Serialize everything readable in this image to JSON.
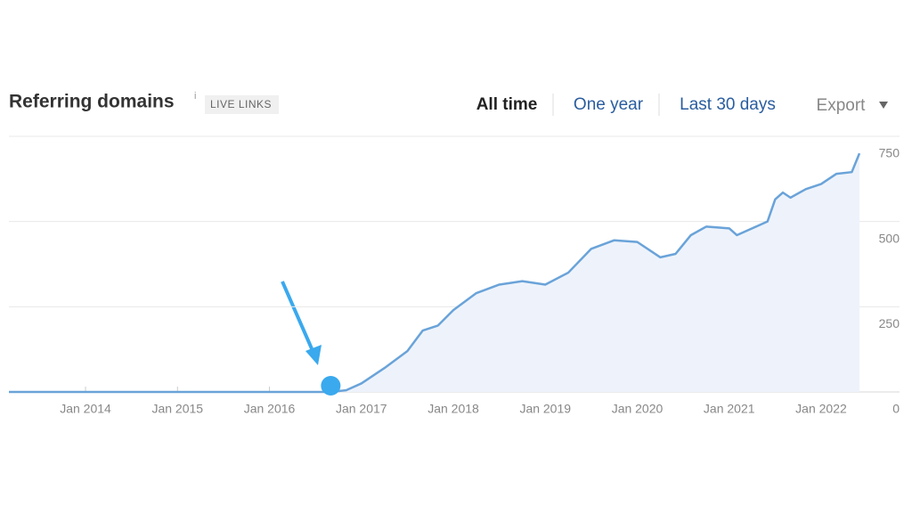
{
  "chart_data": {
    "type": "area",
    "title": "Referring domains",
    "info": "i",
    "badge": "LIVE LINKS",
    "tabs": [
      "All time",
      "One year",
      "Last 30 days"
    ],
    "active_tab": 0,
    "export": "Export",
    "x": [
      "2013-03",
      "2014-01",
      "2015-01",
      "2016-01",
      "2016-09",
      "2016-11",
      "2017-01",
      "2017-04",
      "2017-07",
      "2017-09",
      "2017-11",
      "2018-01",
      "2018-04",
      "2018-07",
      "2018-10",
      "2019-01",
      "2019-04",
      "2019-07",
      "2019-10",
      "2020-01",
      "2020-04",
      "2020-06",
      "2020-08",
      "2020-10",
      "2021-01",
      "2021-02",
      "2021-05",
      "2021-06",
      "2021-07",
      "2021-08",
      "2021-09",
      "2021-11",
      "2022-01",
      "2022-03",
      "2022-05",
      "2022-06"
    ],
    "series": [
      {
        "color": "#6aa3d9",
        "fill": "#eef3fb",
        "values": [
          0,
          0,
          0,
          0,
          0,
          5,
          25,
          70,
          120,
          180,
          195,
          240,
          290,
          315,
          325,
          315,
          350,
          420,
          445,
          440,
          395,
          405,
          460,
          485,
          480,
          460,
          490,
          500,
          565,
          585,
          570,
          595,
          610,
          640,
          645,
          700
        ]
      }
    ],
    "highlight": {
      "x": "2016-09",
      "color": "#3aa9ee"
    },
    "xlim": [
      "2013-03",
      "2022-06"
    ],
    "xticks": [
      {
        "value": "2014-01",
        "label": "Jan 2014"
      },
      {
        "value": "2015-01",
        "label": "Jan 2015"
      },
      {
        "value": "2016-01",
        "label": "Jan 2016"
      },
      {
        "value": "2017-01",
        "label": "Jan 2017"
      },
      {
        "value": "2018-01",
        "label": "Jan 2018"
      },
      {
        "value": "2019-01",
        "label": "Jan 2019"
      },
      {
        "value": "2020-01",
        "label": "Jan 2020"
      },
      {
        "value": "2021-01",
        "label": "Jan 2021"
      },
      {
        "value": "2022-01",
        "label": "Jan 2022"
      }
    ],
    "ylim": [
      0,
      750
    ],
    "yticks": [
      0,
      250,
      500,
      750
    ],
    "grid": true
  }
}
